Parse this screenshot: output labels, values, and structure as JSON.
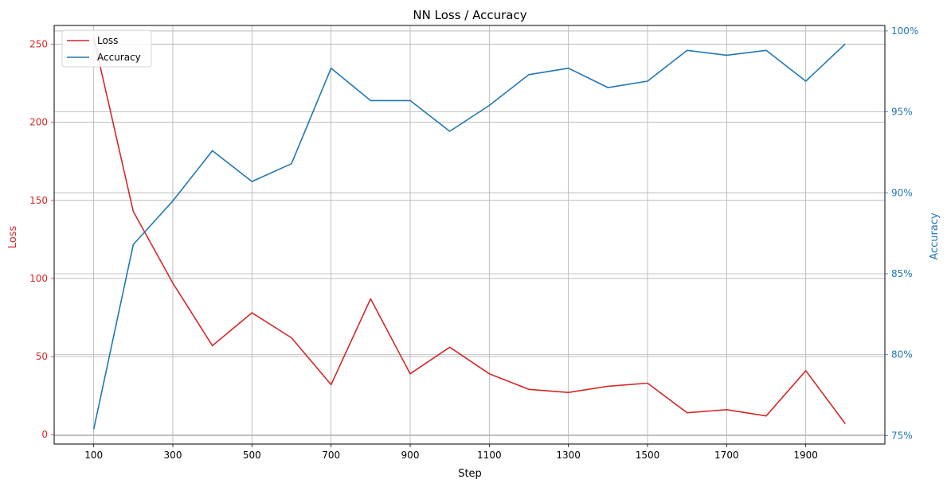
{
  "chart_data": {
    "type": "line",
    "title": "NN Loss / Accuracy",
    "xlabel": "Step",
    "ylabel_left": "Loss",
    "ylabel_right": "Accuracy",
    "x": [
      100,
      200,
      300,
      400,
      500,
      600,
      700,
      800,
      900,
      1000,
      1100,
      1200,
      1300,
      1400,
      1500,
      1600,
      1700,
      1800,
      1900,
      2000
    ],
    "xlim": [
      0,
      2100
    ],
    "x_ticks": [
      100,
      300,
      500,
      700,
      900,
      1100,
      1300,
      1500,
      1700,
      1900
    ],
    "x_tick_labels": [
      "100",
      "300",
      "500",
      "700",
      "900",
      "1100",
      "1300",
      "1500",
      "1700",
      "1900"
    ],
    "ylim_left": [
      -6,
      262
    ],
    "y_ticks_left": [
      0,
      50,
      100,
      150,
      200,
      250
    ],
    "y_tick_labels_left": [
      "0",
      "50",
      "100",
      "150",
      "200",
      "250"
    ],
    "ylim_right": [
      0.7448,
      1.0034
    ],
    "y_ticks_right": [
      0.75,
      0.8,
      0.85,
      0.9,
      0.95,
      1.0
    ],
    "y_tick_labels_right": [
      "75%",
      "80%",
      "85%",
      "90%",
      "95%",
      "100%"
    ],
    "grid": true,
    "legend_position": "top-left",
    "series": [
      {
        "name": "Loss",
        "axis": "left",
        "color": "#d62728",
        "values": [
          254,
          143,
          97,
          57,
          78,
          62,
          32,
          87,
          39,
          56,
          39,
          29,
          27,
          31,
          33,
          14,
          16,
          12,
          41,
          7
        ]
      },
      {
        "name": "Accuracy",
        "axis": "right",
        "color": "#1f77b4",
        "values": [
          0.754,
          0.868,
          0.895,
          0.926,
          0.907,
          0.918,
          0.977,
          0.957,
          0.957,
          0.938,
          0.954,
          0.973,
          0.977,
          0.965,
          0.969,
          0.988,
          0.985,
          0.988,
          0.969,
          0.992
        ]
      }
    ]
  }
}
